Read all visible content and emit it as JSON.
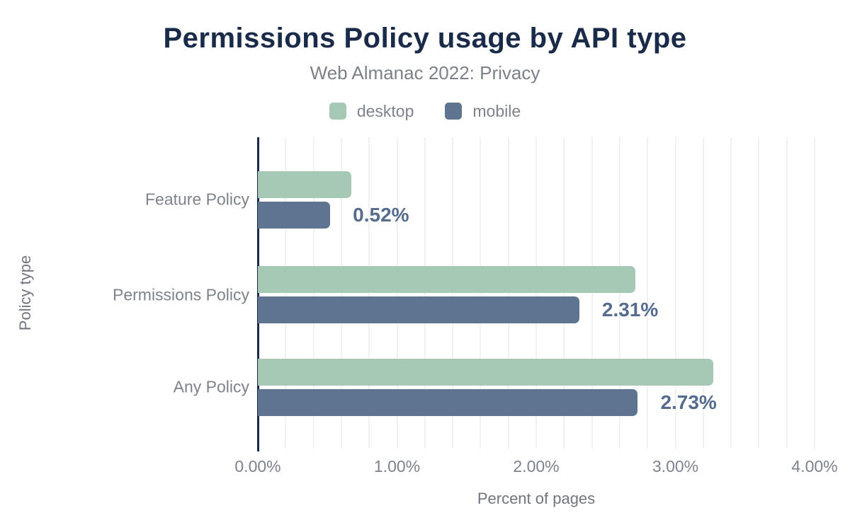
{
  "title": "Permissions Policy usage by API type",
  "subtitle": "Web Almanac 2022: Privacy",
  "legend": [
    {
      "label": "desktop",
      "color": "#a6c9b5"
    },
    {
      "label": "mobile",
      "color": "#5e7491"
    }
  ],
  "chart_data": {
    "type": "bar",
    "orientation": "horizontal",
    "title": "Permissions Policy usage by API type",
    "subtitle": "Web Almanac 2022: Privacy",
    "categories": [
      "Feature Policy",
      "Permissions Policy",
      "Any Policy"
    ],
    "series": [
      {
        "name": "desktop",
        "color": "#a6c9b5",
        "values": [
          0.67,
          2.71,
          3.27
        ]
      },
      {
        "name": "mobile",
        "color": "#5e7491",
        "values": [
          0.52,
          2.31,
          2.73
        ]
      }
    ],
    "annotations": [
      {
        "category": "Feature Policy",
        "series": "mobile",
        "text": "0.52%"
      },
      {
        "category": "Permissions Policy",
        "series": "mobile",
        "text": "2.31%"
      },
      {
        "category": "Any Policy",
        "series": "mobile",
        "text": "2.73%"
      }
    ],
    "xlabel": "Percent of pages",
    "ylabel": "Policy type",
    "x_ticks": [
      {
        "value": 0,
        "label": "0.00%"
      },
      {
        "value": 1,
        "label": "1.00%"
      },
      {
        "value": 2,
        "label": "2.00%"
      },
      {
        "value": 3,
        "label": "3.00%"
      },
      {
        "value": 4,
        "label": "4.00%"
      }
    ],
    "xlim": [
      0,
      4
    ],
    "grid": {
      "on": true,
      "minor_step": 0.2
    },
    "legend_position": "top"
  },
  "colors": {
    "title": "#1a2b49",
    "muted_text": "#7d828c",
    "axis_title": "#70757e",
    "annotation": "#566c8e",
    "axis_line": "#1a2b49",
    "grid": "#f1f1f2",
    "background": "#ffffff"
  }
}
